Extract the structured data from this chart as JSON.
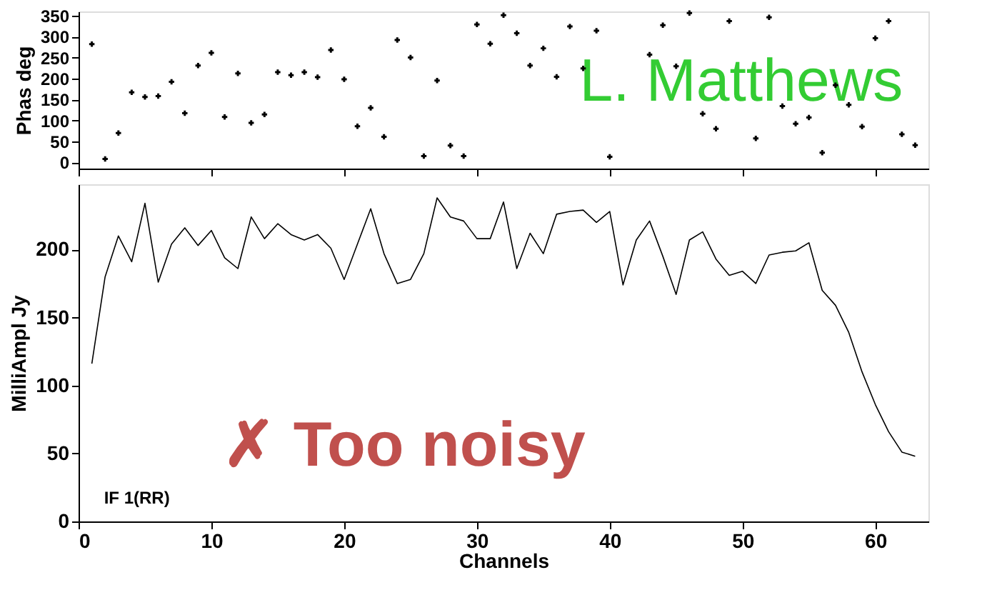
{
  "chart_data": [
    {
      "type": "scatter",
      "ylabel": "Phas deg",
      "marker": "cross",
      "x": [
        1,
        2,
        3,
        4,
        5,
        6,
        7,
        8,
        9,
        10,
        11,
        12,
        13,
        14,
        15,
        16,
        17,
        18,
        19,
        20,
        21,
        22,
        23,
        24,
        25,
        26,
        27,
        28,
        29,
        30,
        31,
        32,
        33,
        34,
        35,
        36,
        37,
        38,
        39,
        40,
        41,
        42,
        43,
        44,
        45,
        46,
        47,
        48,
        49,
        50,
        51,
        52,
        53,
        54,
        55,
        56,
        57,
        58,
        59,
        60,
        61,
        62,
        63
      ],
      "series": [
        {
          "color": "#000000",
          "values": [
            282,
            8,
            70,
            167,
            156,
            158,
            192,
            117,
            231,
            261,
            108,
            212,
            94,
            114,
            215,
            208,
            215,
            203,
            268,
            198,
            86,
            130,
            61,
            292,
            250,
            15,
            195,
            40,
            15,
            329,
            283,
            351,
            308,
            231,
            272,
            204,
            324,
            224,
            314,
            13,
            null,
            null,
            257,
            327,
            229,
            356,
            116,
            80,
            337,
            null,
            57,
            346,
            134,
            92,
            107,
            23,
            184,
            137,
            85,
            296,
            337,
            67,
            41
          ]
        }
      ],
      "xlim": [
        0,
        64
      ],
      "xticks": [
        0,
        10,
        20,
        30,
        40,
        50,
        60
      ],
      "ylim": [
        -15,
        360
      ],
      "yticks": [
        0,
        50,
        100,
        150,
        200,
        250,
        300,
        350
      ],
      "tick_labels": "y",
      "grid": false,
      "annotations": [
        "L. Matthews"
      ]
    },
    {
      "type": "line",
      "xlabel": "Channels",
      "ylabel": "MilliAmpl Jy",
      "marker": "none",
      "line_style": "solid",
      "x": [
        1,
        2,
        3,
        4,
        5,
        6,
        7,
        8,
        9,
        10,
        11,
        12,
        13,
        14,
        15,
        16,
        17,
        18,
        19,
        20,
        21,
        22,
        23,
        24,
        25,
        26,
        27,
        28,
        29,
        30,
        31,
        32,
        33,
        34,
        35,
        36,
        37,
        38,
        39,
        40,
        41,
        42,
        43,
        44,
        45,
        46,
        47,
        48,
        49,
        50,
        51,
        52,
        53,
        54,
        55,
        56,
        57,
        58,
        59,
        60,
        61,
        62,
        63
      ],
      "series": [
        {
          "color": "#000000",
          "values": [
            116,
            180,
            210,
            191,
            234,
            176,
            204,
            216,
            203,
            214,
            194,
            186,
            224,
            208,
            219,
            211,
            207,
            211,
            201,
            178,
            204,
            230,
            197,
            175,
            178,
            197,
            238,
            224,
            221,
            208,
            208,
            235,
            186,
            212,
            197,
            226,
            228,
            229,
            220,
            228,
            174,
            207,
            221,
            195,
            167,
            207,
            213,
            193,
            181,
            184,
            175,
            196,
            198,
            199,
            205,
            170,
            159,
            139,
            110,
            86,
            66,
            51,
            48
          ]
        }
      ],
      "xlim": [
        0,
        64
      ],
      "xticks": [
        0,
        10,
        20,
        30,
        40,
        50,
        60
      ],
      "ylim": [
        0,
        248
      ],
      "yticks": [
        0,
        50,
        100,
        150,
        200
      ],
      "grid": false,
      "annotations": [
        "IF 1(RR)",
        "✗ Too noisy"
      ]
    }
  ]
}
